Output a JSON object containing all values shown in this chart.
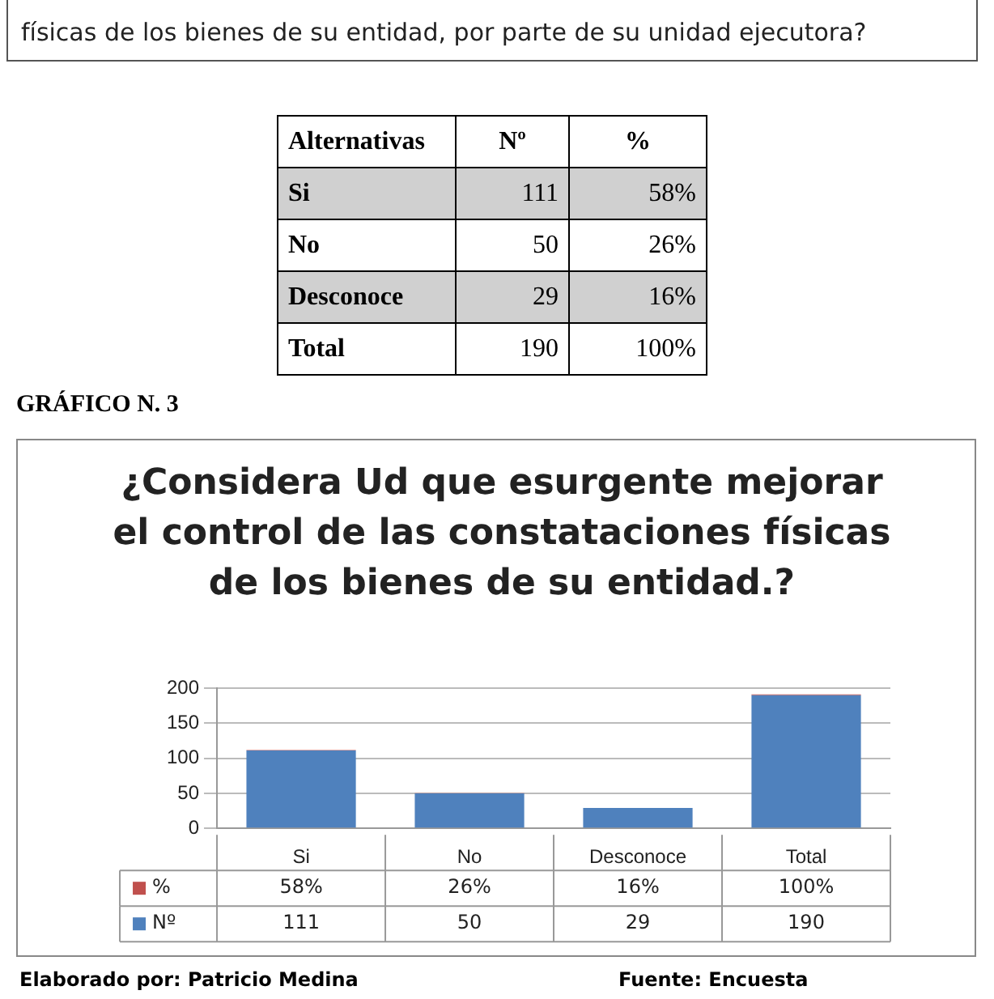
{
  "chart_data": {
    "type": "bar",
    "title": "¿Considera Ud que esurgente mejorar el control de las constataciones físicas de los bienes de su entidad.?",
    "categories": [
      "Si",
      "No",
      "Desconoce",
      "Total"
    ],
    "series": [
      {
        "name": "Nº",
        "color": "#4f81bd",
        "values": [
          111,
          50,
          29,
          190
        ],
        "value_labels": [
          "111",
          "50",
          "29",
          "190"
        ]
      },
      {
        "name": "%",
        "color": "#c0504d",
        "values": [
          0.58,
          0.26,
          0.16,
          1
        ],
        "value_labels": [
          "58%",
          "26%",
          "16%",
          "100%"
        ]
      }
    ],
    "stacked": true,
    "ylim": [
      0,
      200
    ],
    "yticks": [
      0,
      50,
      100,
      150,
      200
    ],
    "grid": "y",
    "legend": "bottom",
    "annotations": [
      "físicas de los bienes de su entidad, por parte de su unidad ejecutora?",
      "Alternativas",
      "Nº",
      "%",
      "Si",
      "111",
      "58%",
      "No",
      "50",
      "26%",
      "Desconoce",
      "29",
      "16%",
      "Total",
      "190",
      "100%",
      "GRÁFICO N. 3",
      "Elaborado  por:  Patricio  Medina",
      "Fuente:  Encuesta"
    ]
  }
}
